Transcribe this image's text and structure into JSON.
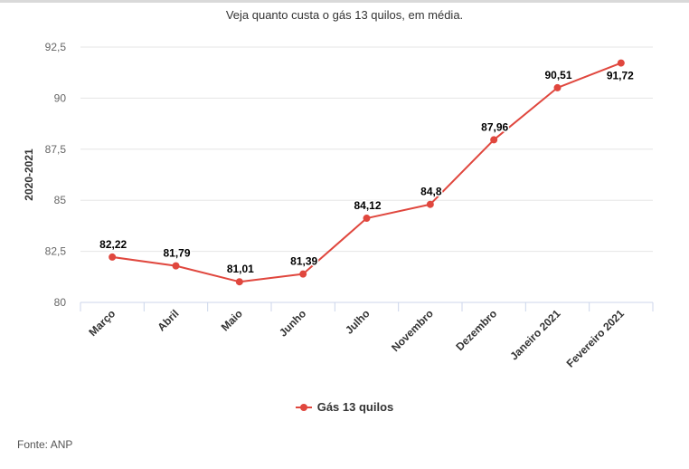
{
  "subtitle": "Veja quanto custa o gás 13 quilos, em média.",
  "source": "Fonte: ANP",
  "colors": {
    "series": "#e0473e",
    "grid": "#e6e6e6",
    "axis": "#ccd6eb",
    "text": "#333333"
  },
  "chart_data": {
    "type": "line",
    "categories": [
      "Março",
      "Abril",
      "Maio",
      "Junho",
      "Julho",
      "Novembro",
      "Dezembro",
      "Janeiro 2021",
      "Fevereiro 2021"
    ],
    "series": [
      {
        "name": "Gás 13 quilos",
        "values": [
          82.22,
          81.79,
          81.01,
          81.39,
          84.12,
          84.8,
          87.96,
          90.51,
          91.72
        ]
      }
    ],
    "data_labels": [
      "82,22",
      "81,79",
      "81,01",
      "81,39",
      "84,12",
      "84,8",
      "87,96",
      "90,51",
      "91,72"
    ],
    "ylabel": "2020-2021",
    "ylim": [
      80,
      92.5
    ],
    "yticks": [
      80,
      82.5,
      85,
      87.5,
      90,
      92.5
    ],
    "ytick_labels": [
      "80",
      "82,5",
      "85",
      "87,5",
      "90",
      "92,5"
    ],
    "grid": true,
    "legend": "bottom-center"
  }
}
